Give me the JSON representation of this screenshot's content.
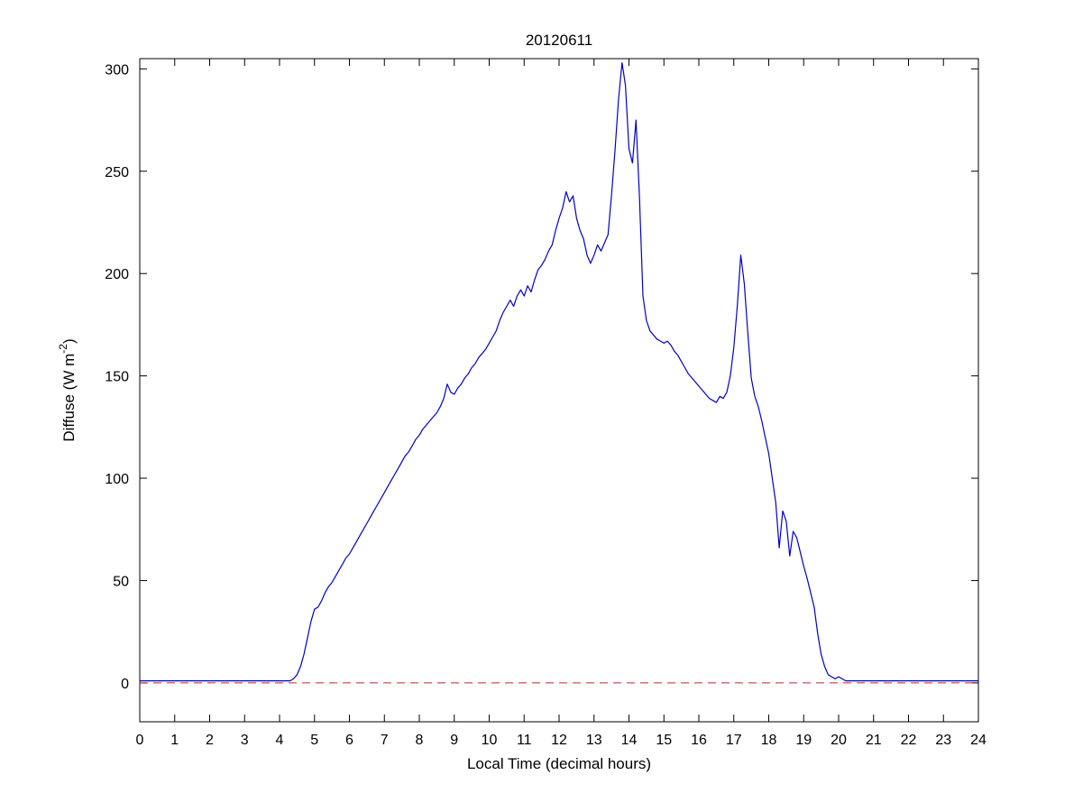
{
  "figure": {
    "background": "#ffffff",
    "title": "20120611",
    "xlabel": "Local Time (decimal hours)",
    "ylabel_main": "Diffuse (W m",
    "ylabel_sup": "-2",
    "ylabel_close": ")",
    "axis_color": "#000000"
  },
  "chart_data": {
    "type": "line",
    "title": "20120611",
    "xlabel": "Local Time (decimal hours)",
    "ylabel": "Diffuse (W m^-2)",
    "xlim": [
      0,
      24
    ],
    "ylim": [
      -19,
      305
    ],
    "xticks": [
      0,
      1,
      2,
      3,
      4,
      5,
      6,
      7,
      8,
      9,
      10,
      11,
      12,
      13,
      14,
      15,
      16,
      17,
      18,
      19,
      20,
      21,
      22,
      23,
      24
    ],
    "yticks": [
      0,
      50,
      100,
      150,
      200,
      250,
      300
    ],
    "grid": false,
    "legend": null,
    "series": [
      {
        "name": "diffuse-irradiance",
        "color": "#0000cc",
        "style": "solid",
        "x_start": 0.0,
        "x_step": 0.1,
        "y": [
          1,
          1,
          1,
          1,
          1,
          1,
          1,
          1,
          1,
          1,
          1,
          1,
          1,
          1,
          1,
          1,
          1,
          1,
          1,
          1,
          1,
          1,
          1,
          1,
          1,
          1,
          1,
          1,
          1,
          1,
          1,
          1,
          1,
          1,
          1,
          1,
          1,
          1,
          1,
          1,
          1,
          1,
          1,
          1,
          2,
          4,
          8,
          14,
          22,
          30,
          36,
          37,
          40,
          44,
          47,
          49,
          52,
          55,
          58,
          61,
          63,
          66,
          69,
          72,
          75,
          78,
          81,
          84,
          87,
          90,
          93,
          96,
          99,
          102,
          105,
          108,
          111,
          113,
          116,
          119,
          121,
          124,
          126,
          128,
          130,
          132,
          135,
          139,
          146,
          142,
          141,
          144,
          146,
          149,
          151,
          154,
          156,
          159,
          161,
          163,
          166,
          169,
          172,
          177,
          181,
          184,
          187,
          184,
          189,
          192,
          189,
          194,
          191,
          197,
          202,
          204,
          207,
          211,
          214,
          221,
          227,
          232,
          240,
          235,
          238,
          227,
          221,
          217,
          209,
          205,
          209,
          214,
          211,
          215,
          219,
          238,
          260,
          285,
          303,
          292,
          261,
          254,
          275,
          238,
          189,
          177,
          172,
          170,
          168,
          167,
          166,
          167,
          165,
          162,
          160,
          157,
          154,
          151,
          149,
          147,
          145,
          143,
          141,
          139,
          138,
          137,
          140,
          139,
          142,
          150,
          164,
          184,
          209,
          195,
          171,
          149,
          140,
          135,
          128,
          120,
          112,
          100,
          88,
          66,
          84,
          79,
          62,
          74,
          71,
          64,
          57,
          51,
          44,
          37,
          24,
          14,
          8,
          4,
          3,
          2,
          3,
          2,
          1,
          1,
          1,
          1,
          1,
          1,
          1,
          1,
          1,
          1,
          1,
          1,
          1,
          1,
          1,
          1,
          1,
          1,
          1,
          1,
          1,
          1,
          1,
          1,
          1,
          1,
          1,
          1,
          1,
          1,
          1,
          1,
          1,
          1,
          1,
          1,
          1,
          1,
          1
        ]
      },
      {
        "name": "zero-reference",
        "color": "#cc2222",
        "style": "dashed",
        "x": [
          0,
          24
        ],
        "y": [
          0,
          0
        ]
      }
    ]
  }
}
